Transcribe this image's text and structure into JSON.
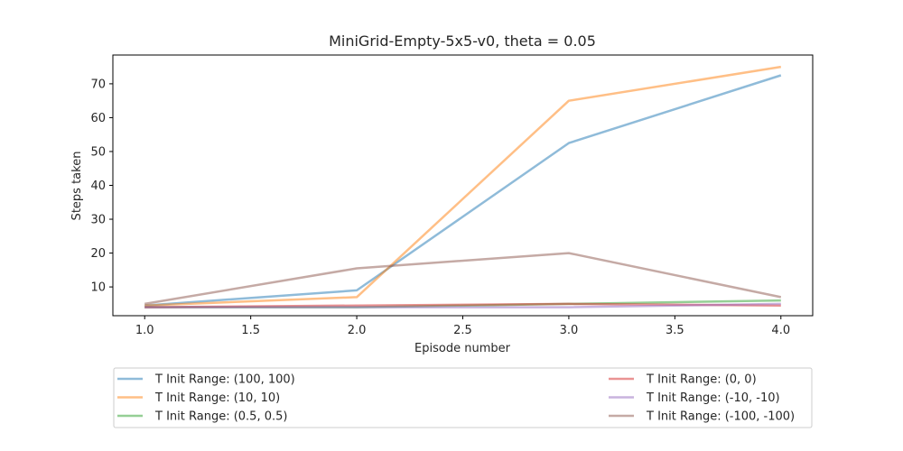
{
  "chart_data": {
    "type": "line",
    "title": "MiniGrid-Empty-5x5-v0, theta = 0.05",
    "xlabel": "Episode number",
    "ylabel": "Steps taken",
    "x": [
      1.0,
      2.0,
      3.0,
      4.0
    ],
    "xlim": [
      0.85,
      4.15
    ],
    "ylim": [
      1.5,
      78.5
    ],
    "xticks": [
      "1.0",
      "1.5",
      "2.0",
      "2.5",
      "3.0",
      "3.5",
      "4.0"
    ],
    "yticks": [
      "10",
      "20",
      "30",
      "40",
      "50",
      "60",
      "70"
    ],
    "grid": false,
    "legend_placement": "below",
    "series": [
      {
        "name": "T Init Range: (100, 100)",
        "color": "#1f77b4",
        "values": [
          4.5,
          9.0,
          52.5,
          72.5
        ]
      },
      {
        "name": "T Init Range: (10, 10)",
        "color": "#ff7f0e",
        "values": [
          4.5,
          7.0,
          65.0,
          75.0
        ]
      },
      {
        "name": "T Init Range: (0.5, 0.5)",
        "color": "#2ca02c",
        "values": [
          4.0,
          4.0,
          5.0,
          6.0
        ]
      },
      {
        "name": "T Init Range: (0, 0)",
        "color": "#d62728",
        "values": [
          4.0,
          4.5,
          5.0,
          4.5
        ]
      },
      {
        "name": "T Init Range: (-10, -10)",
        "color": "#9467bd",
        "values": [
          4.0,
          4.0,
          4.0,
          5.0
        ]
      },
      {
        "name": "T Init Range: (-100, -100)",
        "color": "#8c564b",
        "values": [
          5.0,
          15.5,
          20.0,
          7.0
        ]
      }
    ]
  }
}
